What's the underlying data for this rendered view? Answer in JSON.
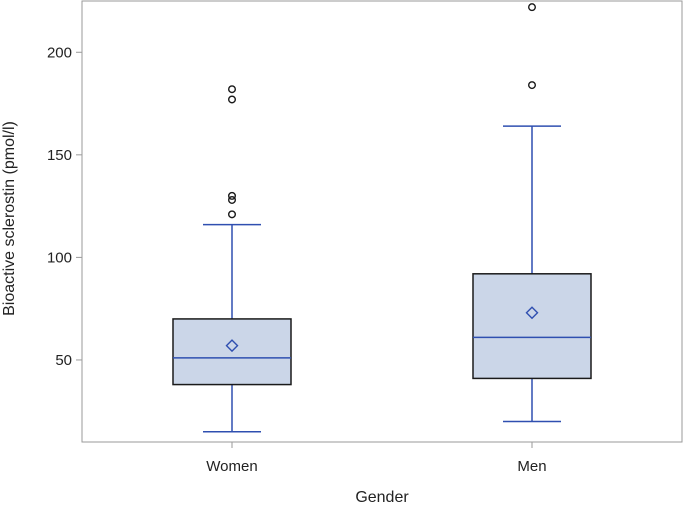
{
  "chart_data": {
    "type": "box",
    "xlabel": "Gender",
    "ylabel": "Bioactive sclerostin (pmol/l)",
    "ylim": [
      10,
      225
    ],
    "yticks": [
      50,
      100,
      150,
      200
    ],
    "grid": false,
    "categories": [
      "Women",
      "Men"
    ],
    "boxes": [
      {
        "category": "Women",
        "whisker_low": 15,
        "q1": 38,
        "median": 51,
        "q3": 70,
        "whisker_high": 116,
        "mean": 57,
        "outliers": [
          121,
          128,
          130,
          177,
          182
        ]
      },
      {
        "category": "Men",
        "whisker_low": 20,
        "q1": 41,
        "median": 61,
        "q3": 92,
        "whisker_high": 164,
        "mean": 73,
        "outliers": [
          184,
          222
        ]
      }
    ],
    "colors": {
      "box_fill": "#cbd6e8",
      "box_edge": "#1a1a1a",
      "whisker": "#2f4fb0",
      "median": "#2f4fb0",
      "mean_marker": "#2f4fb0",
      "outlier": "#1a1a1a",
      "frame": "#9a9a9a"
    }
  }
}
